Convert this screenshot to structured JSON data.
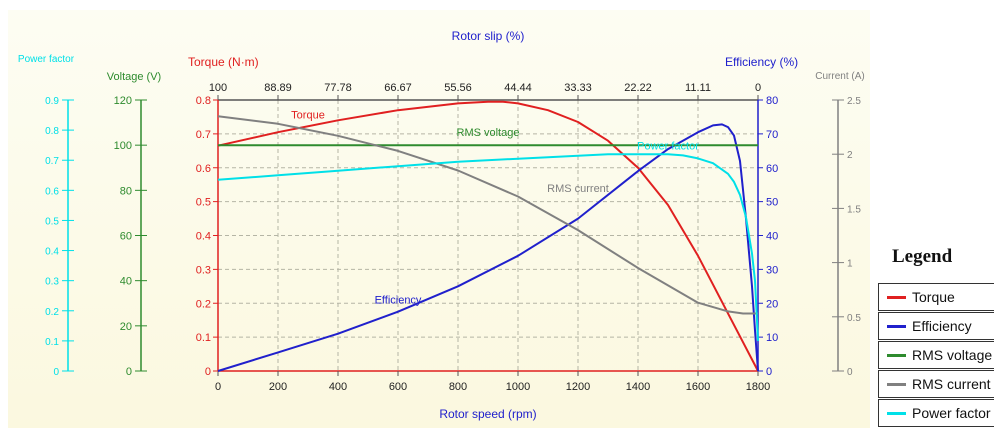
{
  "chart_data": {
    "type": "line",
    "title": "",
    "xlabel": "Rotor speed (rpm)",
    "x_ticks": [
      0,
      200,
      400,
      600,
      800,
      1000,
      1200,
      1400,
      1600,
      1800
    ],
    "xlim": [
      0,
      1800
    ],
    "x2label": "Rotor slip (%)",
    "x2_ticks": [
      "100",
      "88.89",
      "77.78",
      "66.67",
      "55.56",
      "44.44",
      "33.33",
      "22.22",
      "11.11",
      "0"
    ],
    "grid": true,
    "axes": {
      "power_factor": {
        "label": "Power factor",
        "ticks": [
          "0",
          "0.1",
          "0.2",
          "0.3",
          "0.4",
          "0.5",
          "0.6",
          "0.7",
          "0.8",
          "0.9"
        ],
        "ylim": [
          0,
          0.9
        ],
        "color": "#00e0e8"
      },
      "voltage": {
        "label": "Voltage (V)",
        "ticks": [
          "0",
          "20",
          "40",
          "60",
          "80",
          "100",
          "120"
        ],
        "ylim": [
          0,
          120
        ],
        "color": "#2e8b2e"
      },
      "torque": {
        "label": "Torque (N·m)",
        "ticks": [
          "0",
          "0.1",
          "0.2",
          "0.3",
          "0.4",
          "0.5",
          "0.6",
          "0.7",
          "0.8"
        ],
        "ylim": [
          0,
          0.8
        ],
        "color": "#e02020"
      },
      "efficiency": {
        "label": "Efficiency (%)",
        "ticks": [
          "0",
          "10",
          "20",
          "30",
          "40",
          "50",
          "60",
          "70",
          "80"
        ],
        "ylim": [
          0,
          80
        ],
        "color": "#2020cc"
      },
      "current": {
        "label": "Current (A)",
        "ticks": [
          "0",
          "0.5",
          "1",
          "1.5",
          "2",
          "2.5"
        ],
        "ylim": [
          0,
          2.5
        ],
        "color": "#808080"
      }
    },
    "series": [
      {
        "name": "Torque",
        "axis": "torque",
        "color": "#e02020",
        "x": [
          0,
          200,
          400,
          600,
          800,
          900,
          950,
          1000,
          1100,
          1200,
          1300,
          1400,
          1500,
          1600,
          1650,
          1700,
          1750,
          1800
        ],
        "y": [
          0.665,
          0.705,
          0.74,
          0.77,
          0.79,
          0.795,
          0.795,
          0.79,
          0.77,
          0.735,
          0.68,
          0.6,
          0.49,
          0.34,
          0.255,
          0.17,
          0.085,
          0
        ]
      },
      {
        "name": "Efficiency",
        "axis": "efficiency",
        "color": "#2020cc",
        "x": [
          0,
          200,
          400,
          600,
          800,
          1000,
          1200,
          1400,
          1500,
          1600,
          1650,
          1680,
          1700,
          1720,
          1740,
          1760,
          1780,
          1790,
          1800
        ],
        "y": [
          0,
          5.5,
          11,
          17.5,
          25,
          34,
          45,
          59,
          65.5,
          70.5,
          72.5,
          72.8,
          72,
          69.5,
          62,
          45,
          25,
          12,
          0
        ]
      },
      {
        "name": "RMS voltage",
        "axis": "voltage",
        "color": "#2e8b2e",
        "x": [
          0,
          1800
        ],
        "y": [
          100,
          100
        ]
      },
      {
        "name": "RMS current",
        "axis": "current",
        "color": "#808080",
        "x": [
          0,
          200,
          400,
          600,
          800,
          1000,
          1200,
          1400,
          1600,
          1700,
          1750,
          1800
        ],
        "y": [
          2.35,
          2.28,
          2.17,
          2.03,
          1.85,
          1.61,
          1.3,
          0.95,
          0.63,
          0.55,
          0.53,
          0.53
        ]
      },
      {
        "name": "Power factor",
        "axis": "power_factor",
        "color": "#00e0e8",
        "x": [
          0,
          200,
          400,
          600,
          800,
          1000,
          1200,
          1300,
          1400,
          1500,
          1550,
          1600,
          1650,
          1700,
          1720,
          1740,
          1760,
          1780,
          1790,
          1800
        ],
        "y": [
          0.635,
          0.65,
          0.665,
          0.68,
          0.695,
          0.705,
          0.715,
          0.72,
          0.72,
          0.72,
          0.716,
          0.706,
          0.69,
          0.655,
          0.628,
          0.585,
          0.51,
          0.39,
          0.3,
          0.1
        ]
      }
    ],
    "annotations": [
      {
        "text": "Torque",
        "x": 300,
        "axis": "torque",
        "y": 0.745,
        "color": "#e02020"
      },
      {
        "text": "RMS voltage",
        "x": 900,
        "axis": "voltage",
        "y": 104,
        "color": "#2e8b2e"
      },
      {
        "text": "RMS current",
        "x": 1200,
        "axis": "current",
        "y": 1.65,
        "color": "#808080"
      },
      {
        "text": "Efficiency",
        "x": 600,
        "axis": "efficiency",
        "y": 20,
        "color": "#2020cc"
      },
      {
        "text": "Power factor",
        "x": 1500,
        "axis": "power_factor",
        "y": 0.735,
        "color": "#00e0e8"
      }
    ],
    "legend": {
      "title": "Legend",
      "position": "bottom-right",
      "entries": [
        {
          "label": "Torque",
          "color": "#e02020"
        },
        {
          "label": "Efficiency",
          "color": "#2020cc"
        },
        {
          "label": "RMS voltage",
          "color": "#2e8b2e"
        },
        {
          "label": "RMS current",
          "color": "#808080"
        },
        {
          "label": "Power factor",
          "color": "#00e0e8"
        }
      ]
    }
  }
}
